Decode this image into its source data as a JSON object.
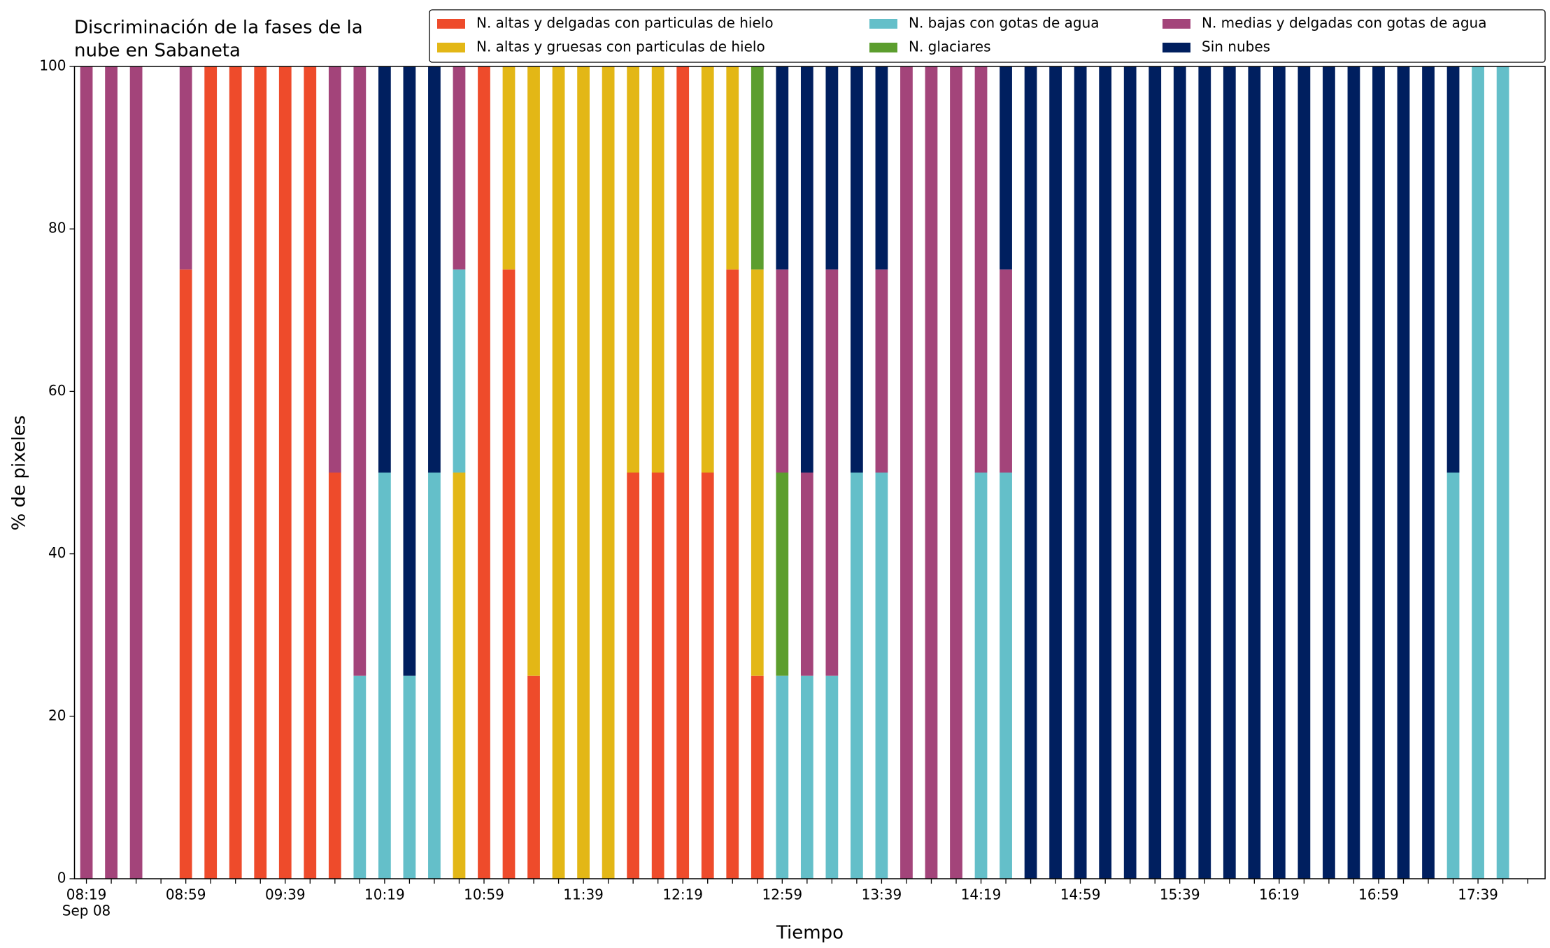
{
  "chart_data": {
    "type": "bar",
    "stacked": true,
    "title_lines": [
      "Discriminación de la fases de la",
      "nube en Sabaneta"
    ],
    "xlabel": "Tiempo",
    "ylabel": "% de pixeles",
    "x_sublabel": "Sep 08",
    "categories": [
      "08:19",
      null,
      null,
      null,
      "08:59",
      null,
      null,
      null,
      "09:39",
      null,
      null,
      null,
      "10:19",
      null,
      null,
      null,
      "10:59",
      null,
      null,
      null,
      "11:39",
      null,
      null,
      null,
      "12:19",
      null,
      null,
      null,
      "12:59",
      null,
      null,
      null,
      "13:39",
      null,
      null,
      null,
      "14:19",
      null,
      null,
      null,
      "14:59",
      null,
      null,
      null,
      "15:39",
      null,
      null,
      null,
      "16:19",
      null,
      null,
      null,
      "16:59",
      null,
      null,
      null,
      "17:39",
      null,
      null
    ],
    "series": [
      {
        "name": "N. altas y delgadas con particulas de hielo",
        "color": "#ee4b2b",
        "values": [
          0,
          0,
          0,
          0,
          75,
          100,
          100,
          100,
          100,
          100,
          50,
          0,
          0,
          0,
          0,
          0,
          100,
          75,
          25,
          0,
          0,
          0,
          50,
          50,
          100,
          50,
          75,
          25,
          0,
          0,
          0,
          0,
          0,
          0,
          0,
          0,
          0,
          0,
          0,
          0,
          0,
          0,
          0,
          0,
          0,
          0,
          0,
          0,
          0,
          0,
          0,
          0,
          0,
          0,
          0,
          0,
          0,
          0,
          0
        ]
      },
      {
        "name": "N. altas y gruesas con particulas de hielo",
        "color": "#e3b716",
        "values": [
          0,
          0,
          0,
          0,
          0,
          0,
          0,
          0,
          0,
          0,
          0,
          0,
          0,
          0,
          0,
          50,
          0,
          25,
          75,
          100,
          100,
          100,
          50,
          50,
          0,
          50,
          25,
          50,
          0,
          0,
          0,
          0,
          0,
          0,
          0,
          0,
          0,
          0,
          0,
          0,
          0,
          0,
          0,
          0,
          0,
          0,
          0,
          0,
          0,
          0,
          0,
          0,
          0,
          0,
          0,
          0,
          0,
          0,
          0
        ]
      },
      {
        "name": "N. bajas con gotas de agua",
        "color": "#64bfc9",
        "values": [
          0,
          0,
          0,
          0,
          0,
          0,
          0,
          0,
          0,
          0,
          0,
          25,
          50,
          25,
          50,
          25,
          0,
          0,
          0,
          0,
          0,
          0,
          0,
          0,
          0,
          0,
          0,
          0,
          25,
          25,
          25,
          50,
          50,
          0,
          0,
          0,
          50,
          50,
          0,
          0,
          0,
          0,
          0,
          0,
          0,
          0,
          0,
          0,
          0,
          0,
          0,
          0,
          0,
          0,
          0,
          50,
          100,
          100,
          0
        ]
      },
      {
        "name": "N. glaciares",
        "color": "#5c9e2e",
        "values": [
          0,
          0,
          0,
          0,
          0,
          0,
          0,
          0,
          0,
          0,
          0,
          0,
          0,
          0,
          0,
          0,
          0,
          0,
          0,
          0,
          0,
          0,
          0,
          0,
          0,
          0,
          0,
          25,
          25,
          0,
          0,
          0,
          0,
          0,
          0,
          0,
          0,
          0,
          0,
          0,
          0,
          0,
          0,
          0,
          0,
          0,
          0,
          0,
          0,
          0,
          0,
          0,
          0,
          0,
          0,
          0,
          0,
          0,
          0
        ]
      },
      {
        "name": "N. medias y delgadas con gotas de agua",
        "color": "#a3447a",
        "values": [
          100,
          100,
          100,
          0,
          25,
          0,
          0,
          0,
          0,
          0,
          50,
          75,
          0,
          0,
          0,
          25,
          0,
          0,
          0,
          0,
          0,
          0,
          0,
          0,
          0,
          0,
          0,
          0,
          25,
          25,
          50,
          0,
          25,
          100,
          100,
          100,
          50,
          25,
          0,
          0,
          0,
          0,
          0,
          0,
          0,
          0,
          0,
          0,
          0,
          0,
          0,
          0,
          0,
          0,
          0,
          0,
          0,
          0,
          0
        ]
      },
      {
        "name": "Sin nubes",
        "color": "#001f5f",
        "values": [
          0,
          0,
          0,
          0,
          0,
          0,
          0,
          0,
          0,
          0,
          0,
          0,
          50,
          75,
          50,
          0,
          0,
          0,
          0,
          0,
          0,
          0,
          0,
          0,
          0,
          0,
          0,
          0,
          25,
          50,
          25,
          50,
          25,
          0,
          0,
          0,
          0,
          25,
          100,
          100,
          100,
          100,
          100,
          100,
          100,
          100,
          100,
          100,
          100,
          100,
          100,
          100,
          100,
          100,
          100,
          50,
          0,
          0,
          0
        ]
      }
    ],
    "ylim": [
      0,
      100
    ],
    "yticks": [
      0,
      20,
      40,
      60,
      80,
      100
    ],
    "grid": false,
    "legend": "top-right"
  }
}
